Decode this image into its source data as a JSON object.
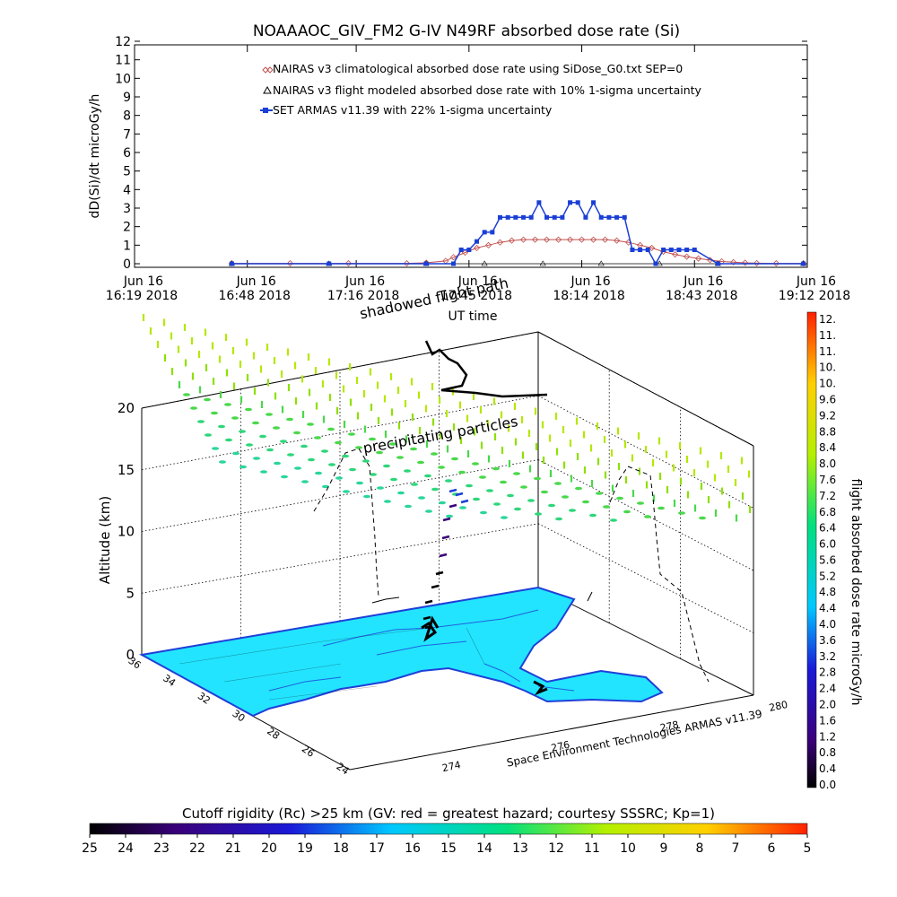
{
  "page_title": "NOAAAOC_GIV_FM2 G-IV    N49RF  absorbed dose rate (Si)",
  "chart_data": [
    {
      "type": "line",
      "ylabel": "dD(Si)/dt microGy/h",
      "xlabel": "UT time",
      "ylim": [
        0,
        12
      ],
      "y_ticks": [
        "0",
        "1",
        "2",
        "3",
        "4",
        "5",
        "6",
        "7",
        "8",
        "9",
        "10",
        "11",
        "12"
      ],
      "x_ticks": [
        {
          "top": "Jun 16",
          "bottom": "16:19 2018",
          "t": 0
        },
        {
          "top": "Jun 16",
          "bottom": "16:48 2018",
          "t": 29
        },
        {
          "top": "Jun 16",
          "bottom": "17:16 2018",
          "t": 57
        },
        {
          "top": "Jun 16",
          "bottom": "17:45 2018",
          "t": 86
        },
        {
          "top": "Jun 16",
          "bottom": "18:14 2018",
          "t": 115
        },
        {
          "top": "Jun 16",
          "bottom": "18:43 2018",
          "t": 144
        },
        {
          "top": "Jun 16",
          "bottom": "19:12 2018",
          "t": 173
        }
      ],
      "xlim": [
        0,
        173
      ],
      "grid": false,
      "legend_placement": "top-left",
      "series": [
        {
          "name": "NAIRAS v3 climatological absorbed dose rate using SiDose_G0.txt SEP=0",
          "color": "#c0504d",
          "marker": "diamond",
          "x": [
            25,
            40,
            55,
            70,
            75,
            80,
            82,
            85,
            88,
            91,
            94,
            97,
            100,
            103,
            106,
            109,
            112,
            115,
            118,
            121,
            124,
            127,
            130,
            133,
            136,
            139,
            142,
            145,
            148,
            151,
            154,
            157,
            160,
            165,
            172
          ],
          "y": [
            0.02,
            0.02,
            0.02,
            0.02,
            0.05,
            0.15,
            0.35,
            0.6,
            0.85,
            1.0,
            1.15,
            1.25,
            1.3,
            1.3,
            1.3,
            1.3,
            1.3,
            1.3,
            1.3,
            1.3,
            1.25,
            1.15,
            1.0,
            0.85,
            0.65,
            0.5,
            0.38,
            0.28,
            0.2,
            0.12,
            0.08,
            0.05,
            0.03,
            0.02,
            0.02
          ]
        },
        {
          "name": "NAIRAS v3 flight modeled absorbed dose rate with 10% 1-sigma uncertainty",
          "color": "#000000",
          "marker": "triangle",
          "x": [
            25,
            50,
            75,
            90,
            105,
            120,
            135,
            150,
            172
          ],
          "y": [
            0.0,
            0.0,
            0.0,
            0.0,
            0.0,
            0.0,
            0.0,
            0.0,
            0.0
          ]
        },
        {
          "name": "SET ARMAS v11.39 with 22% 1-sigma uncertainty",
          "color": "#1a3fd6",
          "marker": "square",
          "x": [
            25,
            50,
            75,
            82,
            84,
            86,
            88,
            90,
            92,
            94,
            96,
            98,
            100,
            102,
            104,
            106,
            108,
            110,
            112,
            114,
            116,
            118,
            120,
            122,
            124,
            126,
            128,
            130,
            132,
            134,
            136,
            138,
            140,
            142,
            144,
            150,
            172
          ],
          "y": [
            0.0,
            0.0,
            0.0,
            0.0,
            0.75,
            0.75,
            1.2,
            1.7,
            1.7,
            2.5,
            2.5,
            2.5,
            2.5,
            2.5,
            3.3,
            2.5,
            2.5,
            2.5,
            3.3,
            3.3,
            2.5,
            3.3,
            2.5,
            2.5,
            2.5,
            2.5,
            0.75,
            0.75,
            0.75,
            0.0,
            0.75,
            0.75,
            0.75,
            0.75,
            0.75,
            0.0,
            0.0
          ]
        }
      ]
    },
    {
      "type": "scatter",
      "zlabel": "Altitude (km)",
      "z_ticks": [
        "0",
        "5",
        "10",
        "15",
        "20"
      ],
      "lat_ticks": [
        "36",
        "34",
        "32",
        "30",
        "28",
        "26",
        "24"
      ],
      "lon_ticks": [
        "274",
        "276",
        "278",
        "280"
      ],
      "annotations": [
        "shadowed flight path",
        "precipitating particles"
      ],
      "credit": "Space Environment Technologies ARMAS v11.39",
      "colorbar": {
        "label": "flight absorbed dose rate microGy/h",
        "ticks": [
          "12.",
          "11.",
          "11.",
          "10.",
          "10.",
          "9.6",
          "9.2",
          "8.8",
          "8.4",
          "8.0",
          "7.6",
          "7.2",
          "6.8",
          "6.4",
          "6.0",
          "5.6",
          "5.2",
          "4.8",
          "4.4",
          "4.0",
          "3.6",
          "3.2",
          "2.8",
          "2.4",
          "2.0",
          "1.6",
          "1.2",
          "0.8",
          "0.4",
          "0.0"
        ]
      }
    },
    {
      "type": "heatmap",
      "colorbar_title": "Cutoff rigidity (Rc) >25 km (GV: red = greatest hazard; courtesy SSSRC; Kp=1)",
      "ticks": [
        "25",
        "24",
        "23",
        "22",
        "21",
        "20",
        "19",
        "18",
        "17",
        "16",
        "15",
        "14",
        "13",
        "12",
        "11",
        "10",
        "9",
        "8",
        "7",
        "6",
        "5"
      ],
      "colors": [
        "#000000",
        "#3a007a",
        "#1a1ad8",
        "#00c8ff",
        "#00e080",
        "#b4f000",
        "#ffd000",
        "#ff2000"
      ]
    }
  ],
  "colors": {
    "armas_blue": "#1a3fd6",
    "nairas_red": "#c0504d",
    "map_cyan": "#22e4ff",
    "coast_blue": "#1f3fd8"
  }
}
